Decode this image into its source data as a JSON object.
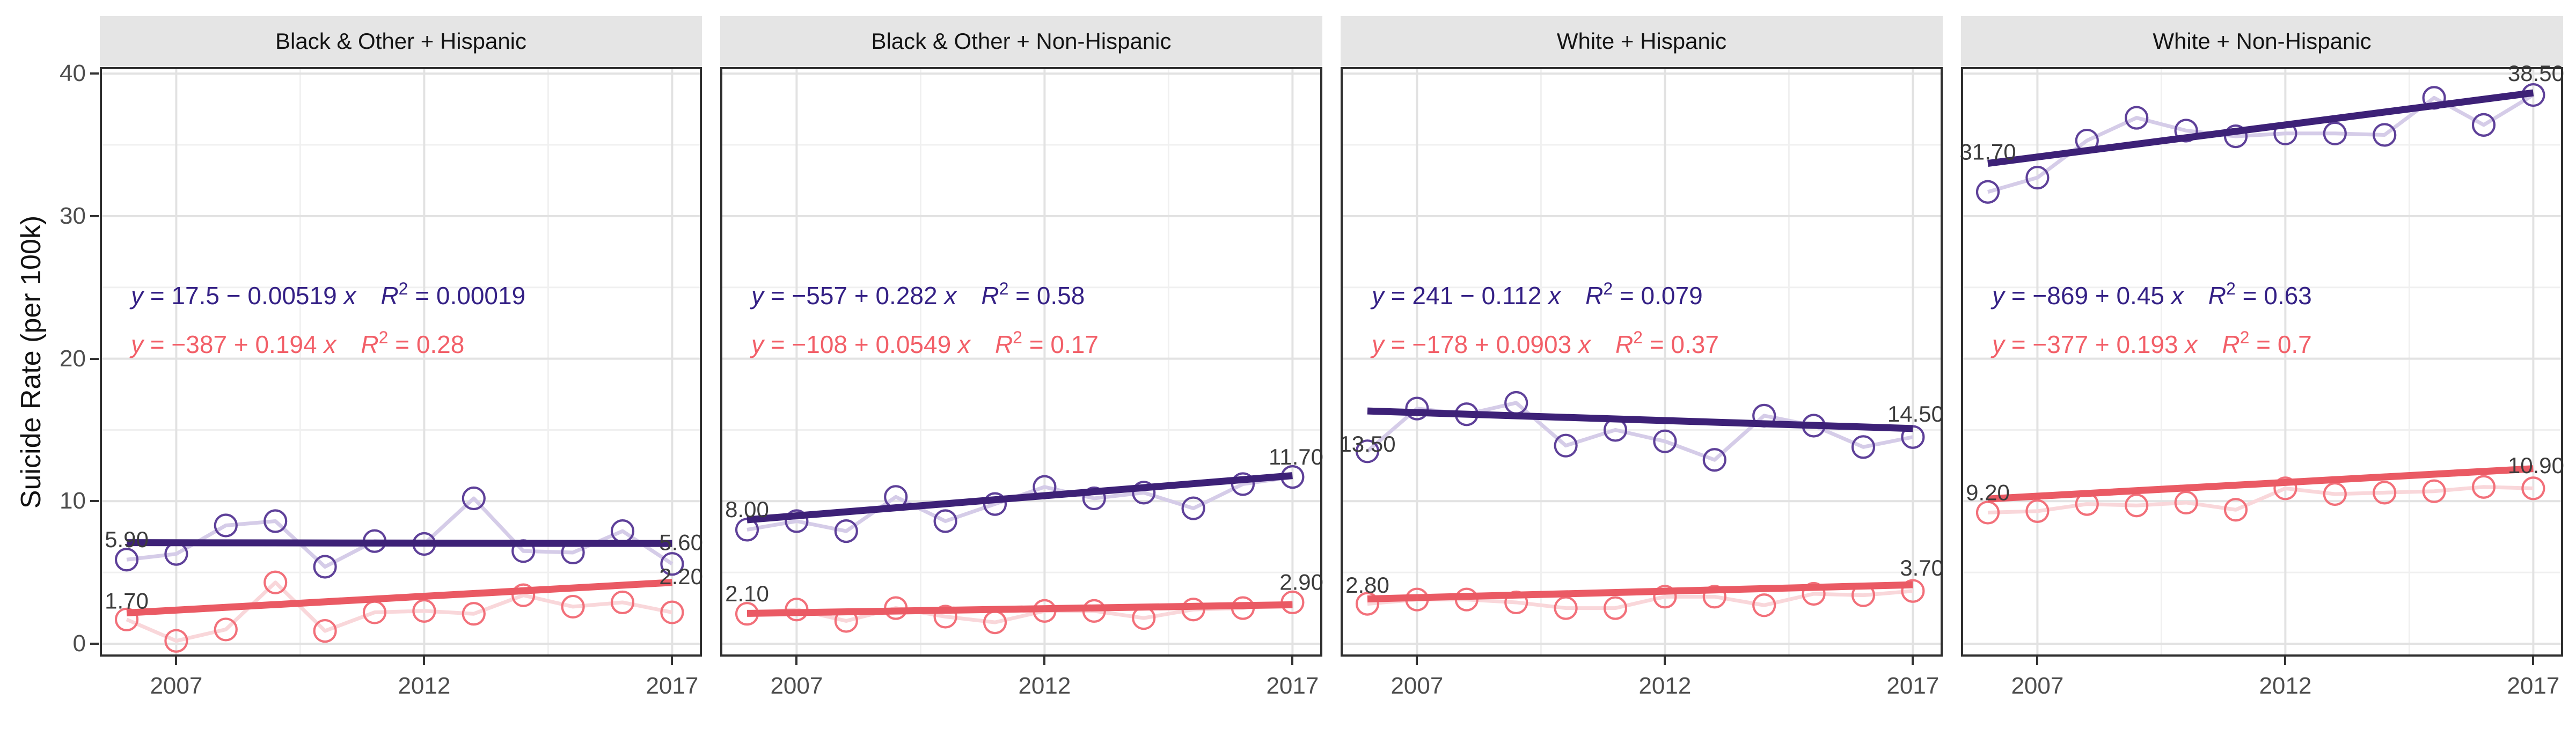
{
  "chart_data": {
    "type": "line",
    "title": "",
    "xlabel": "",
    "ylabel": "Suicide Rate (per 100k)",
    "ylim": [
      0,
      40
    ],
    "y_major_ticks": [
      0,
      10,
      20,
      30,
      40
    ],
    "y_minor_gridlines": [
      5,
      15,
      25,
      35
    ],
    "x_ticks": [
      2007,
      2012,
      2017
    ],
    "x_minor_gridlines": [
      2009.5,
      2014.5
    ],
    "x": [
      2006,
      2007,
      2008,
      2009,
      2010,
      2011,
      2012,
      2013,
      2014,
      2015,
      2016,
      2017
    ],
    "grid": true,
    "legend": "none",
    "point_shape": "open-circle",
    "colors": {
      "navy": {
        "point": "#5e4099",
        "line": "#d5cce8",
        "trend": "#3d2177",
        "text": "#342085"
      },
      "red": {
        "point": "#f2707a",
        "line": "#f9d7da",
        "trend": "#ea5a64",
        "text": "#f25f68"
      },
      "grid_major": "#e2e2e2",
      "grid_minor": "#f0f0f0",
      "panel_border": "#2f2f2f",
      "strip_bg": "#e5e5e5",
      "axis_text": "#4d4d4d",
      "value_label": "#3c3c3c"
    },
    "facets": [
      {
        "title": "Black & Other + Hispanic",
        "series": [
          {
            "id": "navy",
            "values": [
              5.9,
              6.3,
              8.3,
              8.6,
              5.4,
              7.2,
              7.0,
              10.2,
              6.5,
              6.4,
              7.9,
              5.6
            ],
            "first_label": "5.90",
            "last_label": "5.60",
            "trend": {
              "intercept": 17.5,
              "slope": -0.00519
            },
            "equation_rhs": "17.5 − 0.00519",
            "r2": "0.00019"
          },
          {
            "id": "red",
            "values": [
              1.7,
              0.2,
              1.0,
              4.3,
              0.9,
              2.2,
              2.3,
              2.1,
              3.4,
              2.6,
              2.9,
              2.2
            ],
            "first_label": "1.70",
            "last_label": "2.20",
            "trend": {
              "intercept": -387,
              "slope": 0.194
            },
            "equation_rhs": "−387 + 0.194",
            "r2": "0.28"
          }
        ]
      },
      {
        "title": "Black & Other + Non-Hispanic",
        "series": [
          {
            "id": "navy",
            "values": [
              8.0,
              8.6,
              7.9,
              10.3,
              8.6,
              9.8,
              11.0,
              10.2,
              10.6,
              9.5,
              11.2,
              11.7
            ],
            "first_label": "8.00",
            "last_label": "11.70",
            "trend": {
              "intercept": -557,
              "slope": 0.282
            },
            "equation_rhs": "−557 + 0.282",
            "r2": "0.58"
          },
          {
            "id": "red",
            "values": [
              2.1,
              2.4,
              1.6,
              2.5,
              1.9,
              1.5,
              2.3,
              2.3,
              1.8,
              2.4,
              2.5,
              2.9
            ],
            "first_label": "2.10",
            "last_label": "2.90",
            "trend": {
              "intercept": -108,
              "slope": 0.0549
            },
            "equation_rhs": "−108 + 0.0549",
            "r2": "0.17"
          }
        ]
      },
      {
        "title": "White + Hispanic",
        "series": [
          {
            "id": "navy",
            "values": [
              13.5,
              16.5,
              16.1,
              16.9,
              13.9,
              15.0,
              14.2,
              12.9,
              16.0,
              15.3,
              13.8,
              14.5
            ],
            "first_label": "13.50",
            "last_label": "14.50",
            "trend": {
              "intercept": 241,
              "slope": -0.112
            },
            "equation_rhs": "241 − 0.112",
            "r2": "0.079"
          },
          {
            "id": "red",
            "values": [
              2.8,
              3.1,
              3.1,
              2.9,
              2.5,
              2.5,
              3.3,
              3.3,
              2.7,
              3.5,
              3.4,
              3.7
            ],
            "first_label": "2.80",
            "last_label": "3.70",
            "trend": {
              "intercept": -178,
              "slope": 0.0903
            },
            "equation_rhs": "−178 + 0.0903",
            "r2": "0.37"
          }
        ]
      },
      {
        "title": "White + Non-Hispanic",
        "series": [
          {
            "id": "navy",
            "values": [
              31.7,
              32.7,
              35.3,
              36.9,
              36.0,
              35.6,
              35.8,
              35.8,
              35.7,
              38.3,
              36.4,
              38.5
            ],
            "first_label": "31.70",
            "last_label": "38.50",
            "trend": {
              "intercept": -869,
              "slope": 0.45
            },
            "equation_rhs": "−869 + 0.45",
            "r2": "0.63"
          },
          {
            "id": "red",
            "values": [
              9.2,
              9.3,
              9.8,
              9.7,
              9.9,
              9.4,
              10.9,
              10.5,
              10.6,
              10.7,
              11.0,
              10.9
            ],
            "first_label": "9.20",
            "last_label": "10.90",
            "trend": {
              "intercept": -377,
              "slope": 0.193
            },
            "equation_rhs": "−377 + 0.193",
            "r2": "0.7"
          }
        ]
      }
    ]
  }
}
